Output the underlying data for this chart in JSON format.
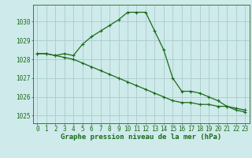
{
  "line1": {
    "x": [
      0,
      1,
      2,
      3,
      4,
      5,
      6,
      7,
      8,
      9,
      10,
      11,
      12,
      13,
      14,
      15,
      16,
      17,
      18,
      19,
      20,
      21,
      22,
      23
    ],
    "y": [
      1028.3,
      1028.3,
      1028.2,
      1028.3,
      1028.2,
      1028.8,
      1029.2,
      1029.5,
      1029.8,
      1030.1,
      1030.5,
      1030.5,
      1030.5,
      1029.5,
      1028.5,
      1027.0,
      1026.3,
      1026.3,
      1026.2,
      1026.0,
      1025.8,
      1025.5,
      1025.3,
      1025.2
    ],
    "color": "#1a6b1a",
    "linewidth": 0.9,
    "marker": "+"
  },
  "line2": {
    "x": [
      0,
      1,
      2,
      3,
      4,
      5,
      6,
      7,
      8,
      9,
      10,
      11,
      12,
      13,
      14,
      15,
      16,
      17,
      18,
      19,
      20,
      21,
      22,
      23
    ],
    "y": [
      1028.3,
      1028.3,
      1028.2,
      1028.1,
      1028.0,
      1027.8,
      1027.6,
      1027.4,
      1027.2,
      1027.0,
      1026.8,
      1026.6,
      1026.4,
      1026.2,
      1026.0,
      1025.8,
      1025.7,
      1025.7,
      1025.6,
      1025.6,
      1025.5,
      1025.5,
      1025.4,
      1025.3
    ],
    "color": "#1a6b1a",
    "linewidth": 0.9,
    "marker": "+"
  },
  "xlim": [
    -0.5,
    23.5
  ],
  "ylim": [
    1024.6,
    1030.9
  ],
  "yticks": [
    1025,
    1026,
    1027,
    1028,
    1029,
    1030
  ],
  "xticks": [
    0,
    1,
    2,
    3,
    4,
    5,
    6,
    7,
    8,
    9,
    10,
    11,
    12,
    13,
    14,
    15,
    16,
    17,
    18,
    19,
    20,
    21,
    22,
    23
  ],
  "xlabel": "Graphe pression niveau de la mer (hPa)",
  "bg_color": "#ceeaea",
  "grid_color": "#aacccc",
  "text_color": "#1a6b1a",
  "tick_color": "#1a6b1a",
  "axis_color": "#3a7a3a",
  "xlabel_fontsize": 6.5,
  "tick_fontsize": 5.5
}
